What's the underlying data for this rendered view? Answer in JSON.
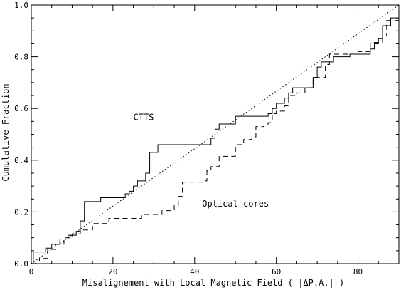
{
  "chart_data": {
    "type": "line",
    "xlabel": "Misalignement with Local Magnetic Field ( |ΔP.A.| )",
    "ylabel": "Cumulative Fraction",
    "xlim": [
      0,
      90
    ],
    "ylim": [
      0,
      1
    ],
    "x_ticks": [
      0,
      20,
      40,
      60,
      80
    ],
    "x_tick_labels": [
      "0",
      "20",
      "40",
      "60",
      "80"
    ],
    "y_ticks": [
      0,
      0.2,
      0.4,
      0.6,
      0.8,
      1.0
    ],
    "y_tick_labels": [
      "0.0",
      "0.2",
      "0.4",
      "0.6",
      "0.8",
      "1.0"
    ],
    "x_minor_step": 5,
    "y_minor_step": 0.05,
    "grid": false,
    "annotations": [
      {
        "text": "CTTS",
        "x": 27.5,
        "y": 0.555
      },
      {
        "text": "Optical cores",
        "x": 50,
        "y": 0.22
      }
    ],
    "series": [
      {
        "style": "solid",
        "x": [
          0,
          0.5,
          3.5,
          5,
          7,
          9,
          11,
          12,
          13,
          17,
          23,
          24,
          25,
          26,
          28,
          29,
          31,
          44,
          45,
          46,
          50,
          58,
          59,
          60,
          62,
          63,
          64,
          69,
          70,
          71,
          74,
          78,
          83,
          84,
          85,
          86,
          88,
          90
        ],
        "y": [
          0,
          0.045,
          0.06,
          0.075,
          0.095,
          0.11,
          0.125,
          0.165,
          0.24,
          0.255,
          0.27,
          0.28,
          0.3,
          0.32,
          0.35,
          0.43,
          0.46,
          0.485,
          0.52,
          0.54,
          0.57,
          0.58,
          0.6,
          0.62,
          0.64,
          0.66,
          0.68,
          0.72,
          0.76,
          0.78,
          0.8,
          0.81,
          0.83,
          0.85,
          0.87,
          0.92,
          0.95,
          1.0
        ]
      },
      {
        "style": "dashed",
        "x": [
          0,
          1,
          2,
          4,
          6,
          8,
          10,
          12,
          15,
          19,
          27,
          32,
          35,
          36,
          37,
          42,
          43,
          44,
          46,
          50,
          52,
          54,
          55,
          57,
          58,
          59,
          60,
          62,
          63,
          65,
          67,
          69,
          72,
          73,
          80,
          83,
          86,
          87,
          90
        ],
        "y": [
          0,
          0.01,
          0.02,
          0.055,
          0.075,
          0.1,
          0.115,
          0.13,
          0.155,
          0.175,
          0.19,
          0.205,
          0.225,
          0.26,
          0.315,
          0.32,
          0.36,
          0.375,
          0.415,
          0.46,
          0.48,
          0.49,
          0.53,
          0.54,
          0.545,
          0.58,
          0.59,
          0.61,
          0.65,
          0.66,
          0.68,
          0.72,
          0.77,
          0.81,
          0.82,
          0.855,
          0.88,
          0.94,
          1.0
        ]
      },
      {
        "style": "dotted",
        "x": [
          0,
          90
        ],
        "y": [
          0,
          1
        ]
      }
    ]
  }
}
